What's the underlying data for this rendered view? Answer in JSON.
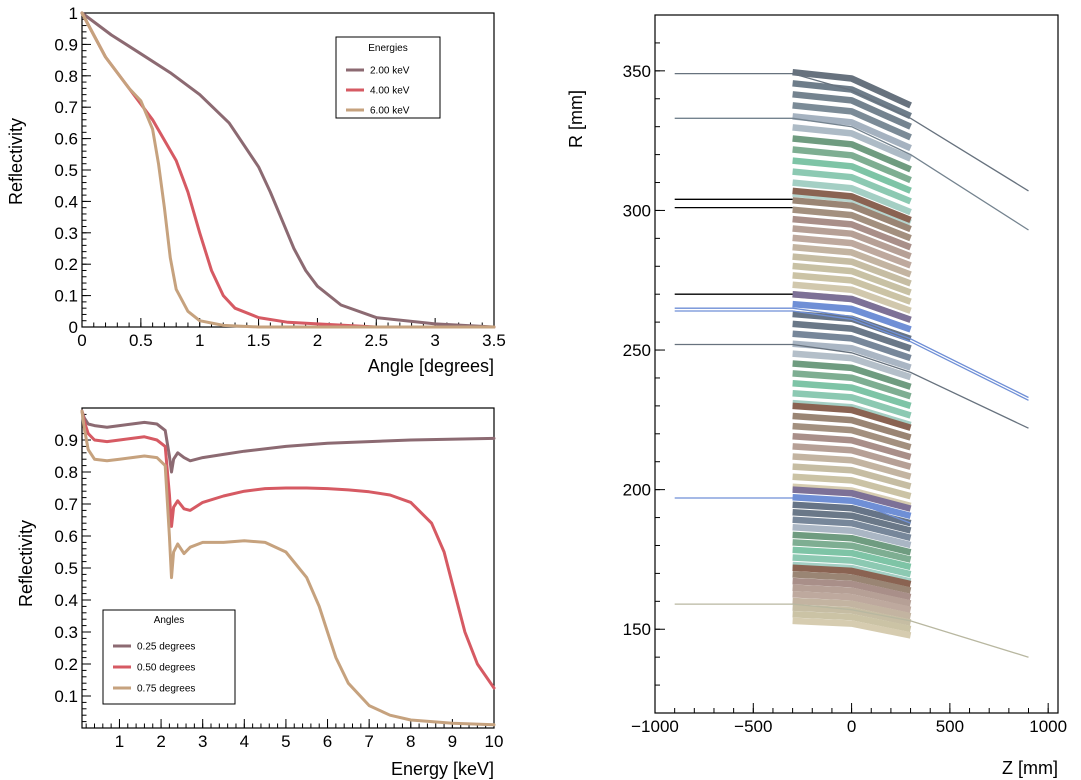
{
  "colors": {
    "c1": "#8c6a72",
    "c2": "#d65a63",
    "c3": "#c6a27e",
    "black": "#000000",
    "blue": "#6f8fd6"
  },
  "chart_data": [
    {
      "type": "line",
      "title": "",
      "xlabel": "Angle [degrees]",
      "ylabel": "Reflectivity",
      "xlim": [
        0,
        3.5
      ],
      "ylim": [
        0,
        1
      ],
      "xticks": [
        0,
        0.5,
        1,
        1.5,
        2,
        2.5,
        3,
        3.5
      ],
      "xticklabels": [
        "0",
        "0.5",
        "1",
        "1.5",
        "2",
        "2.5",
        "3",
        "3.5"
      ],
      "yticks": [
        0,
        0.1,
        0.2,
        0.3,
        0.4,
        0.5,
        0.6,
        0.7,
        0.8,
        0.9,
        1
      ],
      "yticklabels": [
        "0",
        "0.1",
        "0.2",
        "0.3",
        "0.4",
        "0.5",
        "0.6",
        "0.7",
        "0.8",
        "0.9",
        "1"
      ],
      "legend": {
        "title": "Energies",
        "position": "top-right"
      },
      "series": [
        {
          "name": "2.00 keV",
          "color": "#8c6a72",
          "x": [
            0,
            0.25,
            0.5,
            0.75,
            1.0,
            1.25,
            1.5,
            1.6,
            1.7,
            1.8,
            1.9,
            2.0,
            2.2,
            2.5,
            3.0,
            3.5
          ],
          "y": [
            1.0,
            0.93,
            0.87,
            0.81,
            0.74,
            0.65,
            0.51,
            0.43,
            0.34,
            0.25,
            0.18,
            0.13,
            0.07,
            0.03,
            0.01,
            0.0
          ]
        },
        {
          "name": "4.00 keV",
          "color": "#d65a63",
          "x": [
            0,
            0.2,
            0.4,
            0.6,
            0.8,
            0.9,
            1.0,
            1.1,
            1.2,
            1.3,
            1.5,
            1.75,
            2.0,
            2.5,
            3.5
          ],
          "y": [
            1.0,
            0.86,
            0.76,
            0.66,
            0.53,
            0.43,
            0.3,
            0.18,
            0.1,
            0.06,
            0.03,
            0.015,
            0.01,
            0.0,
            0.0
          ]
        },
        {
          "name": "6.00 keV",
          "color": "#c6a27e",
          "x": [
            0,
            0.2,
            0.4,
            0.5,
            0.6,
            0.65,
            0.7,
            0.75,
            0.8,
            0.9,
            1.0,
            1.2,
            1.5,
            2.0,
            3.5
          ],
          "y": [
            1.0,
            0.86,
            0.76,
            0.72,
            0.63,
            0.52,
            0.38,
            0.22,
            0.12,
            0.05,
            0.02,
            0.005,
            0.0,
            0.0,
            0.0
          ]
        }
      ]
    },
    {
      "type": "line",
      "title": "",
      "xlabel": "Energy [keV]",
      "ylabel": "Reflectivity",
      "xlim": [
        0.1,
        10
      ],
      "ylim": [
        0,
        1
      ],
      "xticks": [
        1,
        2,
        3,
        4,
        5,
        6,
        7,
        8,
        9,
        10
      ],
      "xticklabels": [
        "1",
        "2",
        "3",
        "4",
        "5",
        "6",
        "7",
        "8",
        "9",
        "10"
      ],
      "yticks": [
        0.1,
        0.2,
        0.3,
        0.4,
        0.5,
        0.6,
        0.7,
        0.8,
        0.9
      ],
      "yticklabels": [
        "0.1",
        "0.2",
        "0.3",
        "0.4",
        "0.5",
        "0.6",
        "0.7",
        "0.8",
        "0.9"
      ],
      "legend": {
        "title": "Angles",
        "position": "bottom-left"
      },
      "series": [
        {
          "name": "0.25 degrees",
          "color": "#8c6a72",
          "x": [
            0.1,
            0.15,
            0.25,
            0.4,
            0.7,
            1.0,
            1.3,
            1.6,
            1.9,
            2.1,
            2.2,
            2.25,
            2.3,
            2.4,
            2.55,
            2.7,
            3.0,
            3.5,
            4.0,
            5.0,
            6.0,
            8.0,
            10.0
          ],
          "y": [
            0.99,
            0.97,
            0.95,
            0.945,
            0.94,
            0.945,
            0.95,
            0.955,
            0.95,
            0.93,
            0.85,
            0.8,
            0.84,
            0.86,
            0.845,
            0.835,
            0.845,
            0.855,
            0.865,
            0.88,
            0.89,
            0.9,
            0.905
          ]
        },
        {
          "name": "0.50 degrees",
          "color": "#d65a63",
          "x": [
            0.1,
            0.15,
            0.25,
            0.4,
            0.7,
            1.0,
            1.3,
            1.6,
            1.9,
            2.1,
            2.2,
            2.25,
            2.3,
            2.4,
            2.55,
            2.7,
            3.0,
            3.5,
            4.0,
            4.5,
            5.0,
            5.5,
            6.0,
            6.5,
            7.0,
            7.5,
            8.0,
            8.5,
            8.8,
            9.0,
            9.3,
            9.6,
            10.0
          ],
          "y": [
            0.99,
            0.96,
            0.92,
            0.9,
            0.895,
            0.9,
            0.905,
            0.91,
            0.9,
            0.88,
            0.73,
            0.63,
            0.69,
            0.71,
            0.685,
            0.68,
            0.705,
            0.725,
            0.74,
            0.748,
            0.75,
            0.75,
            0.748,
            0.744,
            0.738,
            0.728,
            0.705,
            0.64,
            0.55,
            0.45,
            0.3,
            0.2,
            0.125
          ]
        },
        {
          "name": "0.75 degrees",
          "color": "#c6a27e",
          "x": [
            0.1,
            0.15,
            0.25,
            0.4,
            0.7,
            1.0,
            1.3,
            1.6,
            1.9,
            2.1,
            2.2,
            2.25,
            2.3,
            2.4,
            2.55,
            2.7,
            3.0,
            3.5,
            4.0,
            4.5,
            5.0,
            5.5,
            5.8,
            6.0,
            6.2,
            6.5,
            7.0,
            7.5,
            8.0,
            9.0,
            10.0
          ],
          "y": [
            0.99,
            0.94,
            0.87,
            0.84,
            0.835,
            0.84,
            0.845,
            0.85,
            0.845,
            0.82,
            0.6,
            0.47,
            0.55,
            0.575,
            0.545,
            0.565,
            0.58,
            0.58,
            0.585,
            0.58,
            0.55,
            0.47,
            0.38,
            0.3,
            0.22,
            0.14,
            0.07,
            0.04,
            0.025,
            0.015,
            0.01
          ]
        }
      ]
    },
    {
      "type": "line",
      "title": "",
      "xlabel": "Z [mm]",
      "ylabel": "R [mm]",
      "xlim": [
        -1000,
        1050
      ],
      "ylim": [
        120,
        370
      ],
      "xticks": [
        -1000,
        -500,
        0,
        500,
        1000
      ],
      "xticklabels": [
        "−1000",
        "−500",
        "0",
        "500",
        "1000"
      ],
      "yticks": [
        150,
        200,
        250,
        300,
        350
      ],
      "yticklabels": [
        "150",
        "200",
        "250",
        "300",
        "350"
      ],
      "shells": {
        "z": [
          -300,
          0,
          300
        ],
        "groups": [
          {
            "r0": 349.5,
            "r1": 306,
            "count": 12,
            "colors": [
              "#67727e",
              "#6e7d8a",
              "#74838f",
              "#7b8b97",
              "#a5b2c0",
              "#adbbc6",
              "#6f9c80",
              "#7eae92",
              "#7ec4a6",
              "#8cc9b2",
              "#a4cfc4",
              "#b7d5ce"
            ]
          },
          {
            "r0": 307,
            "r1": 270,
            "count": 12,
            "colors": [
              "#8a6352",
              "#9a8574",
              "#a3907f",
              "#a98f89",
              "#b6a096",
              "#bea99e",
              "#c3b4a1",
              "#c6bda3",
              "#c8c1a4",
              "#cbc3a5",
              "#d1c8ad",
              "#d6ccb0"
            ]
          },
          {
            "r0": 270,
            "r1": 231,
            "count": 12,
            "colors": [
              "#7d7197",
              "#6f8fd6",
              "#667487",
              "#6a7888",
              "#77879a",
              "#aab6c4",
              "#b4bfc9",
              "#6f9c80",
              "#7eae92",
              "#7ec4a6",
              "#8cc9b2",
              "#a4cfc4"
            ]
          },
          {
            "r0": 230,
            "r1": 201,
            "count": 9,
            "colors": [
              "#8a6352",
              "#9a8574",
              "#a3907f",
              "#a98f89",
              "#b6a096",
              "#c3b4a1",
              "#c6bda3",
              "#cbc3a5",
              "#d6ccb0"
            ]
          },
          {
            "r0": 200,
            "r1": 173,
            "count": 11,
            "colors": [
              "#7d7197",
              "#6f8fd6",
              "#667487",
              "#6a7888",
              "#77879a",
              "#aab6c4",
              "#6f9c80",
              "#7eae92",
              "#7ec4a6",
              "#8cc9b2",
              "#a4cfc4"
            ]
          },
          {
            "r0": 172,
            "r1": 153,
            "count": 9,
            "colors": [
              "#8a6352",
              "#9a8574",
              "#a98f89",
              "#b6a096",
              "#bea99e",
              "#c3b4a1",
              "#c6bda3",
              "#cbc3a5",
              "#d6ccb0"
            ]
          }
        ]
      },
      "rays": [
        {
          "color": "#67727e",
          "points": [
            [
              -900,
              349
            ],
            [
              -300,
              349
            ],
            [
              0,
              343
            ],
            [
              300,
              333
            ],
            [
              900,
              307
            ]
          ]
        },
        {
          "color": "#74838f",
          "points": [
            [
              -900,
              333
            ],
            [
              -300,
              333
            ],
            [
              0,
              330
            ],
            [
              300,
              320
            ],
            [
              900,
              293
            ]
          ]
        },
        {
          "color": "#000000",
          "points": [
            [
              -900,
              304
            ],
            [
              -300,
              304
            ]
          ]
        },
        {
          "color": "#000000",
          "points": [
            [
              -900,
              301
            ],
            [
              -300,
              301
            ]
          ]
        },
        {
          "color": "#000000",
          "points": [
            [
              -900,
              270
            ],
            [
              -300,
              270
            ]
          ]
        },
        {
          "color": "#6f8fd6",
          "points": [
            [
              -900,
              265
            ],
            [
              -300,
              265
            ],
            [
              0,
              262
            ],
            [
              300,
              254
            ],
            [
              900,
              233
            ]
          ]
        },
        {
          "color": "#6f8fd6",
          "points": [
            [
              -900,
              264
            ],
            [
              -300,
              264
            ],
            [
              0,
              261
            ],
            [
              300,
              253
            ],
            [
              900,
              232
            ]
          ]
        },
        {
          "color": "#67727e",
          "points": [
            [
              -900,
              252
            ],
            [
              -300,
              252
            ],
            [
              0,
              249
            ],
            [
              300,
              242
            ],
            [
              900,
              222
            ]
          ]
        },
        {
          "color": "#6f8fd6",
          "points": [
            [
              -900,
              197
            ],
            [
              -300,
              197
            ],
            [
              0,
              196
            ],
            [
              300,
              188
            ]
          ]
        },
        {
          "color": "#b8b7a0",
          "points": [
            [
              -900,
              159
            ],
            [
              -300,
              159
            ],
            [
              0,
              157
            ],
            [
              300,
              153
            ],
            [
              900,
              140
            ]
          ]
        }
      ]
    }
  ]
}
